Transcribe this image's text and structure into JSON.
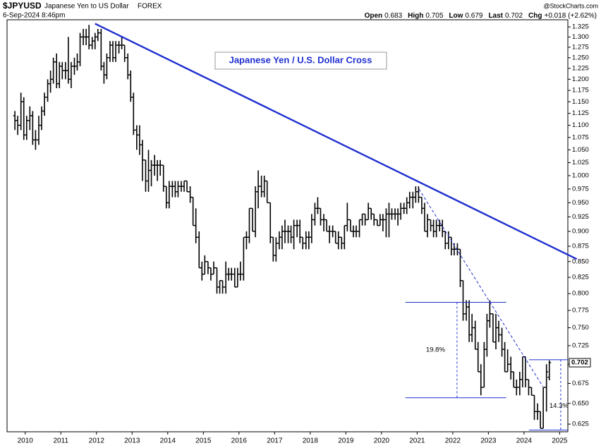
{
  "header": {
    "symbol": "$JPYUSD",
    "name": "Japanese Yen to US Dollar",
    "exchange": "FOREX",
    "date": "6-Sep-2024 8:46pm",
    "source": "@StockCharts.com",
    "quote": [
      {
        "label": "Open",
        "value": "0.683"
      },
      {
        "label": "High",
        "value": "0.705"
      },
      {
        "label": "Low",
        "value": "0.679"
      },
      {
        "label": "Last",
        "value": "0.702"
      },
      {
        "label": "Chg",
        "value": "+0.018 (+2.62%)"
      }
    ]
  },
  "chart_data": {
    "type": "ohlc",
    "title": "Japanese Yen / U.S. Dollar Cross",
    "color": "#000000",
    "log_scale": true,
    "xlim": [
      2009.49,
      2025.23
    ],
    "xticks": [
      2010,
      2011,
      2012,
      2013,
      2014,
      2015,
      2016,
      2017,
      2018,
      2019,
      2020,
      2021,
      2022,
      2023,
      2024,
      2025
    ],
    "ylim": [
      0.616,
      1.343
    ],
    "yticks": [
      0.625,
      {
        "value": 0.65,
        "label": "0.650"
      },
      0.675,
      {
        "value": 0.7,
        "label": "0.700"
      },
      0.725,
      {
        "value": 0.75,
        "label": "0.750"
      },
      0.775,
      {
        "value": 0.8,
        "label": "0.800"
      },
      0.825,
      {
        "value": 0.85,
        "label": "0.850"
      },
      0.875,
      {
        "value": 0.9,
        "label": "0.900"
      },
      0.925,
      {
        "value": 0.95,
        "label": "0.950"
      },
      0.975,
      {
        "value": 1,
        "label": "1.000"
      },
      1.025,
      {
        "value": 1.05,
        "label": "1.050"
      },
      1.075,
      {
        "value": 1.1,
        "label": "1.100"
      },
      1.125,
      {
        "value": 1.15,
        "label": "1.150"
      },
      1.175,
      {
        "value": 1.2,
        "label": "1.200"
      },
      1.225,
      {
        "value": 1.25,
        "label": "1.250"
      },
      1.275,
      {
        "value": 1.3,
        "label": "1.300"
      },
      1.325
    ],
    "x": [
      2009.71,
      2009.79,
      2009.88,
      2009.96,
      2010.04,
      2010.13,
      2010.21,
      2010.29,
      2010.38,
      2010.46,
      2010.54,
      2010.63,
      2010.71,
      2010.79,
      2010.88,
      2010.96,
      2011.04,
      2011.13,
      2011.21,
      2011.29,
      2011.38,
      2011.46,
      2011.54,
      2011.63,
      2011.71,
      2011.79,
      2011.88,
      2011.96,
      2012.04,
      2012.13,
      2012.21,
      2012.29,
      2012.38,
      2012.46,
      2012.54,
      2012.63,
      2012.71,
      2012.79,
      2012.88,
      2012.96,
      2013.04,
      2013.13,
      2013.21,
      2013.29,
      2013.38,
      2013.46,
      2013.54,
      2013.63,
      2013.71,
      2013.79,
      2013.88,
      2013.96,
      2014.04,
      2014.13,
      2014.21,
      2014.29,
      2014.38,
      2014.46,
      2014.54,
      2014.63,
      2014.71,
      2014.79,
      2014.88,
      2014.96,
      2015.04,
      2015.13,
      2015.21,
      2015.29,
      2015.38,
      2015.46,
      2015.54,
      2015.63,
      2015.71,
      2015.79,
      2015.88,
      2015.96,
      2016.04,
      2016.13,
      2016.21,
      2016.29,
      2016.38,
      2016.46,
      2016.54,
      2016.63,
      2016.71,
      2016.79,
      2016.88,
      2016.96,
      2017.04,
      2017.13,
      2017.21,
      2017.29,
      2017.38,
      2017.46,
      2017.54,
      2017.63,
      2017.71,
      2017.79,
      2017.88,
      2017.96,
      2018.04,
      2018.13,
      2018.21,
      2018.29,
      2018.38,
      2018.46,
      2018.54,
      2018.63,
      2018.71,
      2018.79,
      2018.88,
      2018.96,
      2019.04,
      2019.13,
      2019.21,
      2019.29,
      2019.38,
      2019.46,
      2019.54,
      2019.63,
      2019.71,
      2019.79,
      2019.88,
      2019.96,
      2020.04,
      2020.13,
      2020.21,
      2020.29,
      2020.38,
      2020.46,
      2020.54,
      2020.63,
      2020.71,
      2020.79,
      2020.88,
      2020.96,
      2021.04,
      2021.13,
      2021.21,
      2021.29,
      2021.38,
      2021.46,
      2021.54,
      2021.63,
      2021.71,
      2021.79,
      2021.88,
      2021.96,
      2022.04,
      2022.13,
      2022.21,
      2022.29,
      2022.38,
      2022.46,
      2022.54,
      2022.63,
      2022.71,
      2022.79,
      2022.88,
      2022.96,
      2023.04,
      2023.13,
      2023.21,
      2023.29,
      2023.38,
      2023.46,
      2023.54,
      2023.63,
      2023.71,
      2023.79,
      2023.88,
      2023.96,
      2024.04,
      2024.13,
      2024.21,
      2024.29,
      2024.38,
      2024.46,
      2024.54,
      2024.63,
      2024.71
    ],
    "open": [
      1.12,
      1.11,
      1.1,
      1.15,
      1.08,
      1.11,
      1.12,
      1.07,
      1.07,
      1.1,
      1.13,
      1.16,
      1.19,
      1.2,
      1.24,
      1.19,
      1.23,
      1.22,
      1.22,
      1.2,
      1.23,
      1.23,
      1.24,
      1.3,
      1.3,
      1.3,
      1.28,
      1.29,
      1.3,
      1.31,
      1.23,
      1.21,
      1.25,
      1.28,
      1.25,
      1.28,
      1.28,
      1.28,
      1.25,
      1.21,
      1.16,
      1.09,
      1.08,
      1.06,
      1.03,
      0.99,
      1.01,
      1.02,
      1.02,
      1.02,
      1.02,
      0.98,
      0.95,
      0.98,
      0.98,
      0.97,
      0.98,
      0.98,
      0.99,
      0.97,
      0.96,
      0.91,
      0.89,
      0.84,
      0.83,
      0.85,
      0.84,
      0.83,
      0.84,
      0.81,
      0.82,
      0.81,
      0.83,
      0.83,
      0.83,
      0.81,
      0.83,
      0.83,
      0.89,
      0.89,
      0.94,
      0.9,
      0.97,
      0.98,
      0.97,
      0.99,
      0.95,
      0.89,
      0.86,
      0.88,
      0.89,
      0.9,
      0.9,
      0.9,
      0.89,
      0.91,
      0.91,
      0.89,
      0.88,
      0.89,
      0.89,
      0.92,
      0.94,
      0.94,
      0.92,
      0.92,
      0.9,
      0.9,
      0.9,
      0.88,
      0.89,
      0.88,
      0.91,
      0.92,
      0.9,
      0.9,
      0.9,
      0.92,
      0.93,
      0.92,
      0.94,
      0.93,
      0.92,
      0.91,
      0.92,
      0.92,
      0.93,
      0.93,
      0.93,
      0.93,
      0.93,
      0.94,
      0.94,
      0.95,
      0.96,
      0.96,
      0.97,
      0.96,
      0.94,
      0.9,
      0.92,
      0.91,
      0.9,
      0.91,
      0.91,
      0.9,
      0.88,
      0.89,
      0.87,
      0.87,
      0.87,
      0.82,
      0.77,
      0.78,
      0.74,
      0.75,
      0.72,
      0.69,
      0.67,
      0.72,
      0.76,
      0.77,
      0.73,
      0.75,
      0.74,
      0.72,
      0.69,
      0.7,
      0.69,
      0.67,
      0.67,
      0.68,
      0.71,
      0.68,
      0.67,
      0.66,
      0.64,
      0.64,
      0.62,
      0.67,
      0.683
    ],
    "high": [
      1.13,
      1.12,
      1.17,
      1.16,
      1.12,
      1.14,
      1.13,
      1.09,
      1.12,
      1.14,
      1.17,
      1.2,
      1.22,
      1.25,
      1.26,
      1.24,
      1.24,
      1.24,
      1.3,
      1.24,
      1.25,
      1.26,
      1.31,
      1.32,
      1.32,
      1.33,
      1.3,
      1.31,
      1.32,
      1.32,
      1.24,
      1.26,
      1.29,
      1.29,
      1.29,
      1.29,
      1.3,
      1.28,
      1.26,
      1.22,
      1.17,
      1.1,
      1.1,
      1.07,
      1.03,
      1.05,
      1.03,
      1.04,
      1.03,
      1.03,
      1.02,
      0.98,
      0.99,
      0.99,
      0.99,
      0.99,
      0.99,
      0.99,
      0.99,
      0.98,
      0.96,
      0.94,
      0.9,
      0.85,
      0.86,
      0.85,
      0.84,
      0.85,
      0.84,
      0.82,
      0.82,
      0.85,
      0.84,
      0.84,
      0.84,
      0.84,
      0.85,
      0.89,
      0.9,
      0.94,
      0.94,
      0.98,
      1.01,
      1.0,
      1.0,
      0.99,
      0.95,
      0.89,
      0.89,
      0.9,
      0.91,
      0.92,
      0.91,
      0.91,
      0.92,
      0.92,
      0.92,
      0.89,
      0.9,
      0.9,
      0.93,
      0.95,
      0.96,
      0.94,
      0.93,
      0.92,
      0.91,
      0.91,
      0.9,
      0.9,
      0.89,
      0.91,
      0.95,
      0.92,
      0.91,
      0.91,
      0.92,
      0.93,
      0.93,
      0.95,
      0.94,
      0.93,
      0.92,
      0.93,
      0.93,
      0.94,
      0.95,
      0.94,
      0.94,
      0.94,
      0.95,
      0.95,
      0.96,
      0.97,
      0.97,
      0.98,
      0.98,
      0.96,
      0.95,
      0.93,
      0.92,
      0.92,
      0.92,
      0.92,
      0.92,
      0.9,
      0.9,
      0.89,
      0.88,
      0.88,
      0.87,
      0.82,
      0.79,
      0.79,
      0.77,
      0.76,
      0.73,
      0.7,
      0.73,
      0.77,
      0.79,
      0.77,
      0.77,
      0.76,
      0.75,
      0.73,
      0.72,
      0.71,
      0.69,
      0.68,
      0.69,
      0.71,
      0.71,
      0.68,
      0.67,
      0.66,
      0.65,
      0.64,
      0.67,
      0.7,
      0.705
    ],
    "low": [
      1.09,
      1.08,
      1.09,
      1.07,
      1.07,
      1.09,
      1.06,
      1.05,
      1.06,
      1.09,
      1.12,
      1.15,
      1.17,
      1.19,
      1.18,
      1.18,
      1.2,
      1.2,
      1.19,
      1.18,
      1.21,
      1.22,
      1.23,
      1.28,
      1.28,
      1.27,
      1.27,
      1.27,
      1.29,
      1.22,
      1.19,
      1.2,
      1.24,
      1.24,
      1.24,
      1.26,
      1.27,
      1.24,
      1.2,
      1.15,
      1.08,
      1.05,
      1.04,
      0.99,
      0.97,
      0.97,
      0.98,
      1.0,
      0.99,
      1.0,
      0.97,
      0.94,
      0.94,
      0.96,
      0.96,
      0.96,
      0.97,
      0.97,
      0.97,
      0.95,
      0.91,
      0.88,
      0.84,
      0.82,
      0.83,
      0.83,
      0.82,
      0.83,
      0.8,
      0.8,
      0.8,
      0.8,
      0.82,
      0.82,
      0.81,
      0.81,
      0.82,
      0.82,
      0.87,
      0.88,
      0.9,
      0.89,
      0.94,
      0.96,
      0.96,
      0.95,
      0.88,
      0.85,
      0.85,
      0.87,
      0.87,
      0.88,
      0.88,
      0.88,
      0.87,
      0.89,
      0.88,
      0.87,
      0.87,
      0.87,
      0.88,
      0.91,
      0.93,
      0.91,
      0.9,
      0.9,
      0.88,
      0.89,
      0.88,
      0.87,
      0.87,
      0.87,
      0.9,
      0.9,
      0.89,
      0.89,
      0.89,
      0.91,
      0.91,
      0.92,
      0.92,
      0.91,
      0.91,
      0.91,
      0.9,
      0.89,
      0.89,
      0.92,
      0.92,
      0.91,
      0.92,
      0.93,
      0.93,
      0.94,
      0.94,
      0.95,
      0.95,
      0.93,
      0.9,
      0.89,
      0.9,
      0.89,
      0.89,
      0.9,
      0.89,
      0.87,
      0.87,
      0.86,
      0.86,
      0.86,
      0.81,
      0.76,
      0.76,
      0.73,
      0.73,
      0.72,
      0.69,
      0.66,
      0.67,
      0.71,
      0.75,
      0.73,
      0.72,
      0.73,
      0.71,
      0.69,
      0.69,
      0.68,
      0.67,
      0.66,
      0.66,
      0.67,
      0.67,
      0.66,
      0.66,
      0.63,
      0.63,
      0.62,
      0.62,
      0.64,
      0.679
    ],
    "close": [
      1.11,
      1.1,
      1.15,
      1.08,
      1.11,
      1.12,
      1.07,
      1.07,
      1.1,
      1.13,
      1.16,
      1.19,
      1.2,
      1.24,
      1.19,
      1.23,
      1.22,
      1.22,
      1.2,
      1.23,
      1.23,
      1.24,
      1.3,
      1.3,
      1.3,
      1.28,
      1.29,
      1.3,
      1.31,
      1.23,
      1.21,
      1.25,
      1.28,
      1.25,
      1.28,
      1.28,
      1.28,
      1.25,
      1.21,
      1.16,
      1.09,
      1.08,
      1.06,
      1.03,
      0.99,
      1.01,
      1.02,
      1.02,
      1.02,
      1.02,
      0.98,
      0.95,
      0.98,
      0.98,
      0.97,
      0.98,
      0.98,
      0.99,
      0.97,
      0.96,
      0.91,
      0.89,
      0.84,
      0.83,
      0.85,
      0.84,
      0.83,
      0.84,
      0.81,
      0.82,
      0.81,
      0.83,
      0.83,
      0.83,
      0.81,
      0.83,
      0.83,
      0.89,
      0.89,
      0.94,
      0.9,
      0.97,
      0.98,
      0.97,
      0.99,
      0.95,
      0.89,
      0.86,
      0.88,
      0.89,
      0.9,
      0.9,
      0.9,
      0.89,
      0.91,
      0.91,
      0.89,
      0.88,
      0.89,
      0.89,
      0.92,
      0.94,
      0.94,
      0.92,
      0.92,
      0.9,
      0.9,
      0.9,
      0.88,
      0.89,
      0.88,
      0.91,
      0.92,
      0.9,
      0.9,
      0.9,
      0.92,
      0.93,
      0.92,
      0.94,
      0.93,
      0.92,
      0.91,
      0.92,
      0.92,
      0.93,
      0.93,
      0.93,
      0.93,
      0.93,
      0.94,
      0.94,
      0.95,
      0.96,
      0.96,
      0.97,
      0.96,
      0.94,
      0.9,
      0.92,
      0.91,
      0.9,
      0.91,
      0.91,
      0.9,
      0.88,
      0.89,
      0.87,
      0.87,
      0.87,
      0.82,
      0.77,
      0.78,
      0.74,
      0.75,
      0.72,
      0.69,
      0.67,
      0.72,
      0.76,
      0.77,
      0.73,
      0.75,
      0.74,
      0.72,
      0.69,
      0.7,
      0.69,
      0.67,
      0.67,
      0.68,
      0.71,
      0.68,
      0.67,
      0.66,
      0.64,
      0.64,
      0.62,
      0.67,
      0.69,
      0.702
    ],
    "trendlines": [
      {
        "x": [
          2011.96,
          2025.48
        ],
        "y": [
          1.333,
          0.854
        ],
        "style": "solid",
        "color": "#1f2fd0"
      },
      {
        "x": [
          2021.05,
          2024.53
        ],
        "y": [
          0.975,
          0.671
        ],
        "style": "dashed",
        "color": "#1f2fd0"
      }
    ],
    "levels": [
      {
        "x": [
          2020.67,
          2023.5
        ],
        "y": 0.787
      },
      {
        "x": [
          2020.67,
          2023.5
        ],
        "y": 0.657
      },
      {
        "x": [
          2024.14,
          2025.23
        ],
        "y": 0.706
      },
      {
        "x": [
          2024.14,
          2025.23
        ],
        "y": 0.618
      }
    ],
    "ranges": [
      {
        "x": 2022.12,
        "y": [
          0.787,
          0.657
        ],
        "label": "19.8%"
      },
      {
        "x": 2025.03,
        "y": [
          0.706,
          0.618
        ],
        "label": "14.3%"
      }
    ],
    "level_color": "#1f2fd0"
  }
}
